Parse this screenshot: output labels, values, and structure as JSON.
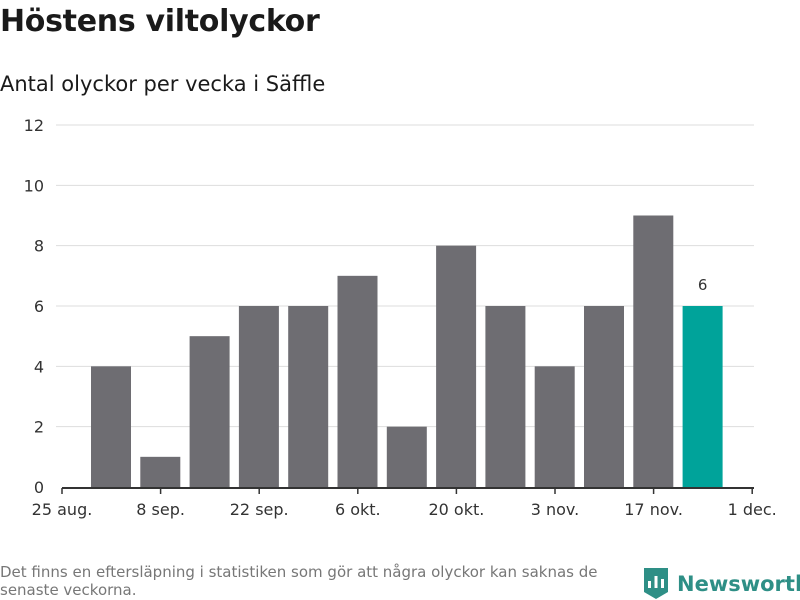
{
  "title": "Höstens viltolyckor",
  "subtitle": "Antal olyckor per vecka i Säffle",
  "footnote": "Det finns en eftersläpning i statistiken som gör att några olyckor kan saknas de senaste veckorna.",
  "brand": {
    "name": "Newsworthy",
    "icon": "newsworthy-logo-icon",
    "color": "#2e8f86"
  },
  "colors": {
    "bar": "#6e6d72",
    "highlight": "#00a39a",
    "grid": "#dddddd",
    "axis": "#333333"
  },
  "chart_data": {
    "type": "bar",
    "title": "Antal olyckor per vecka i Säffle",
    "xlabel": "",
    "ylabel": "",
    "ylim": [
      0,
      12
    ],
    "yticks": [
      0,
      2,
      4,
      6,
      8,
      10,
      12
    ],
    "grid": true,
    "x_tick_labels": [
      "25 aug.",
      "8 sep.",
      "22 sep.",
      "6 okt.",
      "20 okt.",
      "3 nov.",
      "17 nov.",
      "1 dec."
    ],
    "categories": [
      "2025-09-01",
      "2025-09-08",
      "2025-09-15",
      "2025-09-22",
      "2025-09-29",
      "2025-10-06",
      "2025-10-13",
      "2025-10-20",
      "2025-10-27",
      "2025-11-03",
      "2025-11-10",
      "2025-11-17",
      "2025-11-24"
    ],
    "values": [
      4,
      1,
      5,
      6,
      6,
      7,
      2,
      8,
      6,
      4,
      6,
      9,
      6
    ],
    "highlight_index": 12,
    "data_labels": [
      {
        "index": 12,
        "text": "6"
      }
    ]
  }
}
